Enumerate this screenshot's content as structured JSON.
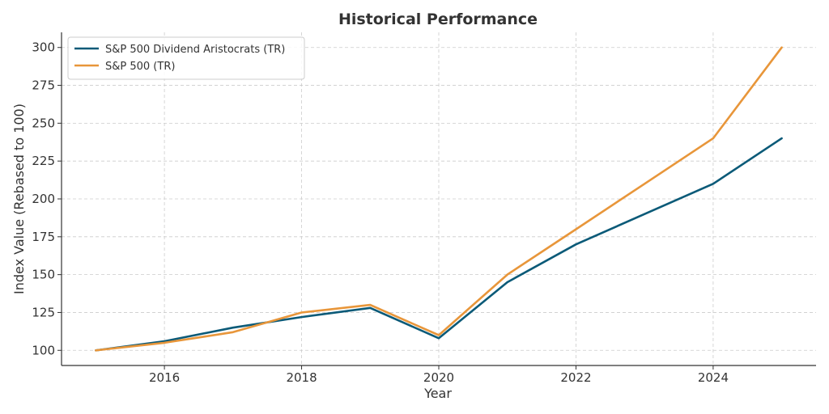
{
  "chart_data": {
    "type": "line",
    "title": "Historical Performance",
    "xlabel": "Year",
    "ylabel": "Index Value (Rebased to 100)",
    "x": [
      2015,
      2016,
      2017,
      2018,
      2019,
      2020,
      2021,
      2022,
      2023,
      2024,
      2025
    ],
    "xlim": [
      2014.5,
      2025.5
    ],
    "ylim": [
      90,
      310
    ],
    "xticks": [
      2016,
      2018,
      2020,
      2022,
      2024
    ],
    "yticks": [
      100,
      125,
      150,
      175,
      200,
      225,
      250,
      275,
      300
    ],
    "grid": true,
    "legend_position": "top-left",
    "series": [
      {
        "name": "S&P 500 Dividend Aristocrats (TR)",
        "color": "#0b5a78",
        "values": [
          100,
          106,
          115,
          122,
          128,
          108,
          145,
          170,
          190,
          210,
          240
        ]
      },
      {
        "name": "S&P 500 (TR)",
        "color": "#e8963a",
        "values": [
          100,
          105,
          112,
          125,
          130,
          110,
          150,
          180,
          210,
          240,
          300
        ]
      }
    ]
  }
}
